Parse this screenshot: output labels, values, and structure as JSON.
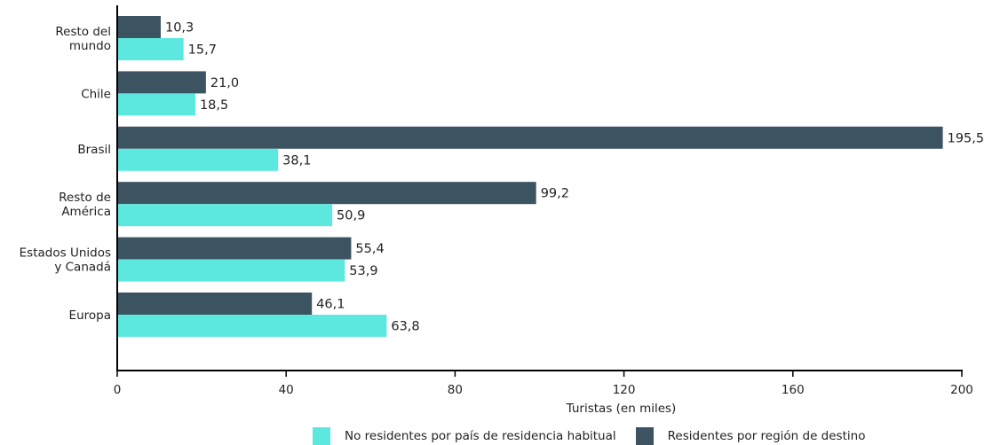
{
  "chart_data": {
    "type": "bar",
    "orientation": "horizontal",
    "categories": [
      [
        "Resto del",
        "mundo"
      ],
      [
        "Chile"
      ],
      [
        "Brasil"
      ],
      [
        "Resto de",
        "América"
      ],
      [
        "Estados Unidos",
        "y Canadá"
      ],
      [
        "Europa"
      ]
    ],
    "series": [
      {
        "name": "Residentes por región de destino",
        "color": "#3c5361",
        "values": [
          10.3,
          21.0,
          195.5,
          99.2,
          55.4,
          46.1
        ],
        "labels": [
          "10,3",
          "21,0",
          "195,5",
          "99,2",
          "55,4",
          "46,1"
        ]
      },
      {
        "name": "No residentes por país de residencia habitual",
        "color": "#5ce8df",
        "values": [
          15.7,
          18.5,
          38.1,
          50.9,
          53.9,
          63.8
        ],
        "labels": [
          "15,7",
          "18,5",
          "38,1",
          "50,9",
          "53,9",
          "63,8"
        ]
      }
    ],
    "xlabel": "Turistas (en miles)",
    "xlim": [
      0,
      200
    ],
    "xticks": [
      0,
      40,
      80,
      120,
      160,
      200
    ],
    "legend_position": "bottom-right",
    "grid": false
  },
  "legend": {
    "items": [
      {
        "label": "No residentes por país de residencia habitual",
        "color": "#5ce8df"
      },
      {
        "label": "Residentes por región de destino",
        "color": "#3c5361"
      }
    ]
  }
}
